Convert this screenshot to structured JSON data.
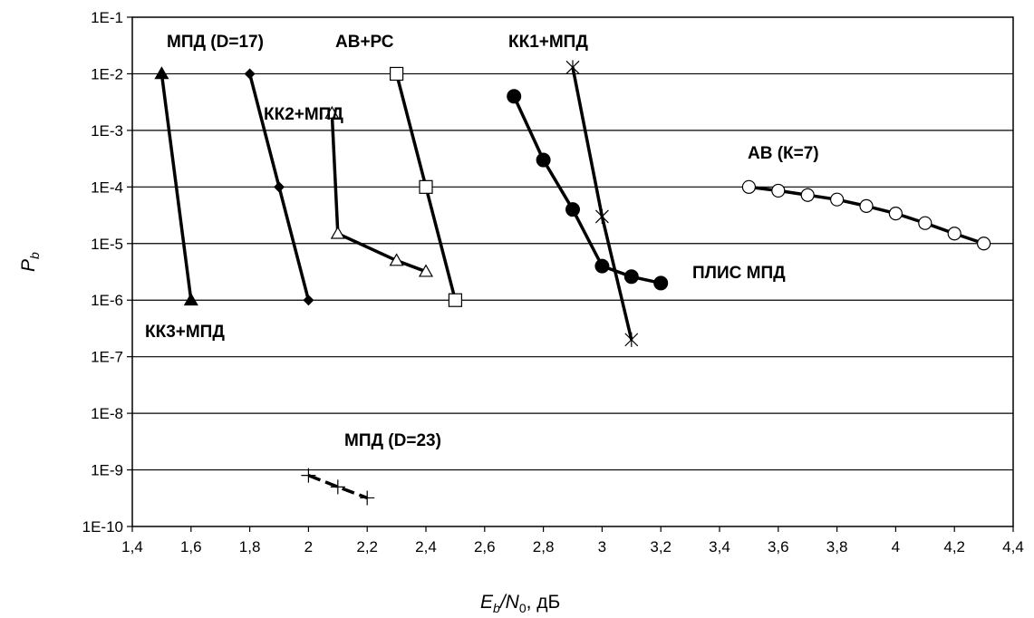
{
  "chart_data": {
    "type": "line",
    "xlabel": {
      "main": "E",
      "sub1": "b",
      "slash": "/N",
      "sub2": "0",
      "unit": ",  дБ"
    },
    "ylabel": {
      "main": "P",
      "sub": "b"
    },
    "xlim": [
      1.4,
      4.4
    ],
    "ylim": [
      1e-10,
      0.1
    ],
    "yscale": "log",
    "grid": "horizontal",
    "x_ticks": [
      "1,4",
      "1,6",
      "1,8",
      "2",
      "2,2",
      "2,4",
      "2,6",
      "2,8",
      "3",
      "3,2",
      "3,4",
      "3,6",
      "3,8",
      "4",
      "4,2",
      "4,4"
    ],
    "y_ticks": [
      "1E-10",
      "1E-9",
      "1E-8",
      "1E-7",
      "1E-6",
      "1E-5",
      "1E-4",
      "1E-3",
      "1E-2",
      "1E-1"
    ],
    "series": [
      {
        "name": "КК3+МПД",
        "marker": "triangle-filled",
        "dashed": false,
        "points": [
          [
            1.5,
            0.01
          ],
          [
            1.6,
            1e-06
          ]
        ]
      },
      {
        "name": "МПД (D=17)",
        "marker": "diamond-filled",
        "dashed": false,
        "points": [
          [
            1.8,
            0.01
          ],
          [
            1.9,
            0.0001
          ],
          [
            2.0,
            1e-06
          ]
        ]
      },
      {
        "name": "КК2+МПД",
        "marker": "triangle-open",
        "dashed": false,
        "points": [
          [
            2.08,
            0.002
          ],
          [
            2.1,
            1.5e-05
          ],
          [
            2.3,
            5e-06
          ],
          [
            2.4,
            3.2e-06
          ]
        ]
      },
      {
        "name": "АВ+РС",
        "marker": "square-open",
        "dashed": false,
        "points": [
          [
            2.3,
            0.01
          ],
          [
            2.4,
            0.0001
          ],
          [
            2.5,
            1e-06
          ]
        ]
      },
      {
        "name": "ПЛИС МПД",
        "marker": "circle-filled",
        "dashed": false,
        "points": [
          [
            2.7,
            0.004
          ],
          [
            2.8,
            0.0003
          ],
          [
            2.9,
            4e-05
          ],
          [
            3.0,
            4e-06
          ],
          [
            3.1,
            2.6e-06
          ],
          [
            3.2,
            2e-06
          ]
        ]
      },
      {
        "name": "КК1+МПД",
        "marker": "star",
        "dashed": false,
        "points": [
          [
            2.9,
            0.013
          ],
          [
            3.0,
            3e-05
          ],
          [
            3.1,
            2e-07
          ]
        ]
      },
      {
        "name": "АВ (К=7)",
        "marker": "circle-open",
        "dashed": false,
        "points": [
          [
            3.5,
            0.0001
          ],
          [
            3.6,
            8.6e-05
          ],
          [
            3.7,
            7.2e-05
          ],
          [
            3.8,
            6e-05
          ],
          [
            3.9,
            4.6e-05
          ],
          [
            4.0,
            3.4e-05
          ],
          [
            4.1,
            2.3e-05
          ],
          [
            4.2,
            1.5e-05
          ],
          [
            4.3,
            1e-05
          ]
        ]
      },
      {
        "name": "МПД (D=23)",
        "marker": "plus",
        "dashed": true,
        "points": [
          [
            2.0,
            8e-10
          ],
          [
            2.1,
            5e-10
          ],
          [
            2.2,
            3.2e-10
          ]
        ]
      }
    ]
  }
}
